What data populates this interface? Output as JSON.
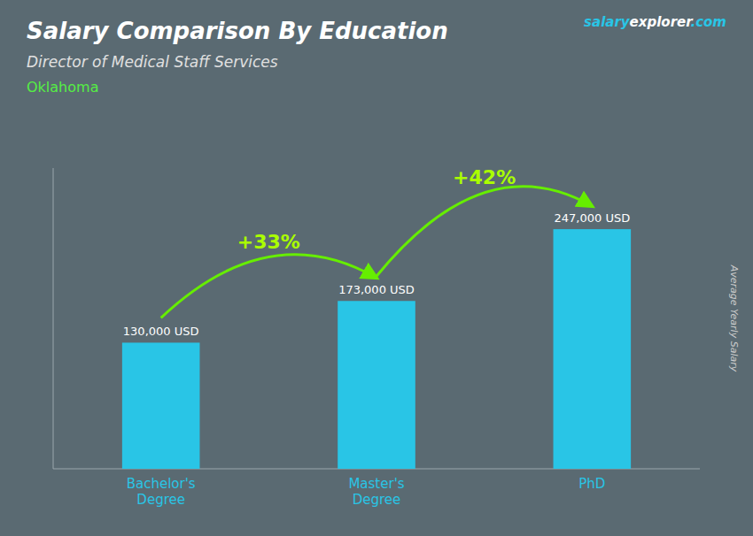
{
  "chart_data": {
    "type": "bar",
    "title": "Salary Comparison By Education",
    "subtitle": "Director of Medical Staff Services",
    "location": "Oklahoma",
    "brand": [
      "salary",
      "explorer",
      ".com"
    ],
    "ylabel": "Average Yearly Salary",
    "categories": [
      "Bachelor's\nDegree",
      "Master's\nDegree",
      "PhD"
    ],
    "values": [
      130000,
      173000,
      247000
    ],
    "value_labels": [
      "130,000 USD",
      "173,000 USD",
      "247,000 USD"
    ],
    "data_labels": true,
    "annotations": [
      "+33%",
      "+42%"
    ],
    "color": "#29c5e6",
    "ylim": [
      0,
      310000
    ],
    "grid": false,
    "tick_labels": "x"
  }
}
